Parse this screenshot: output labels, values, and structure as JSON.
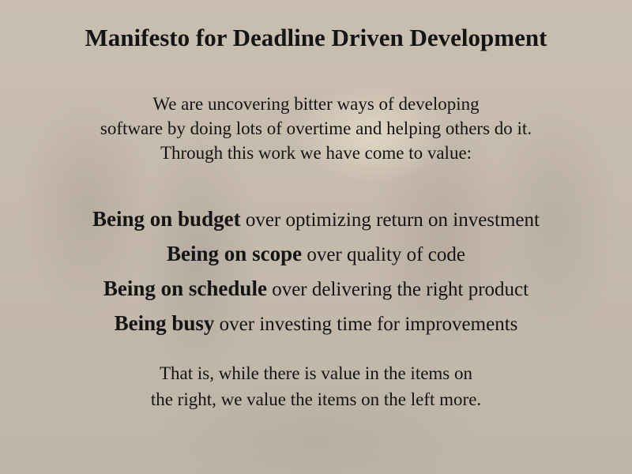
{
  "title": "Manifesto for Deadline Driven Development",
  "intro": [
    "We are uncovering bitter ways of developing",
    "software by doing lots of overtime and helping others do it.",
    "Through this work we have come to value:"
  ],
  "values": [
    {
      "left": "Being on budget",
      "right": "over optimizing return on investment"
    },
    {
      "left": "Being on scope",
      "right": "over quality of code"
    },
    {
      "left": "Being on schedule",
      "right": "over delivering the right product"
    },
    {
      "left": "Being busy",
      "right": "over investing time for improvements"
    }
  ],
  "closing": [
    "That is, while there is value in the items on",
    "the right, we value the items on the left more."
  ]
}
